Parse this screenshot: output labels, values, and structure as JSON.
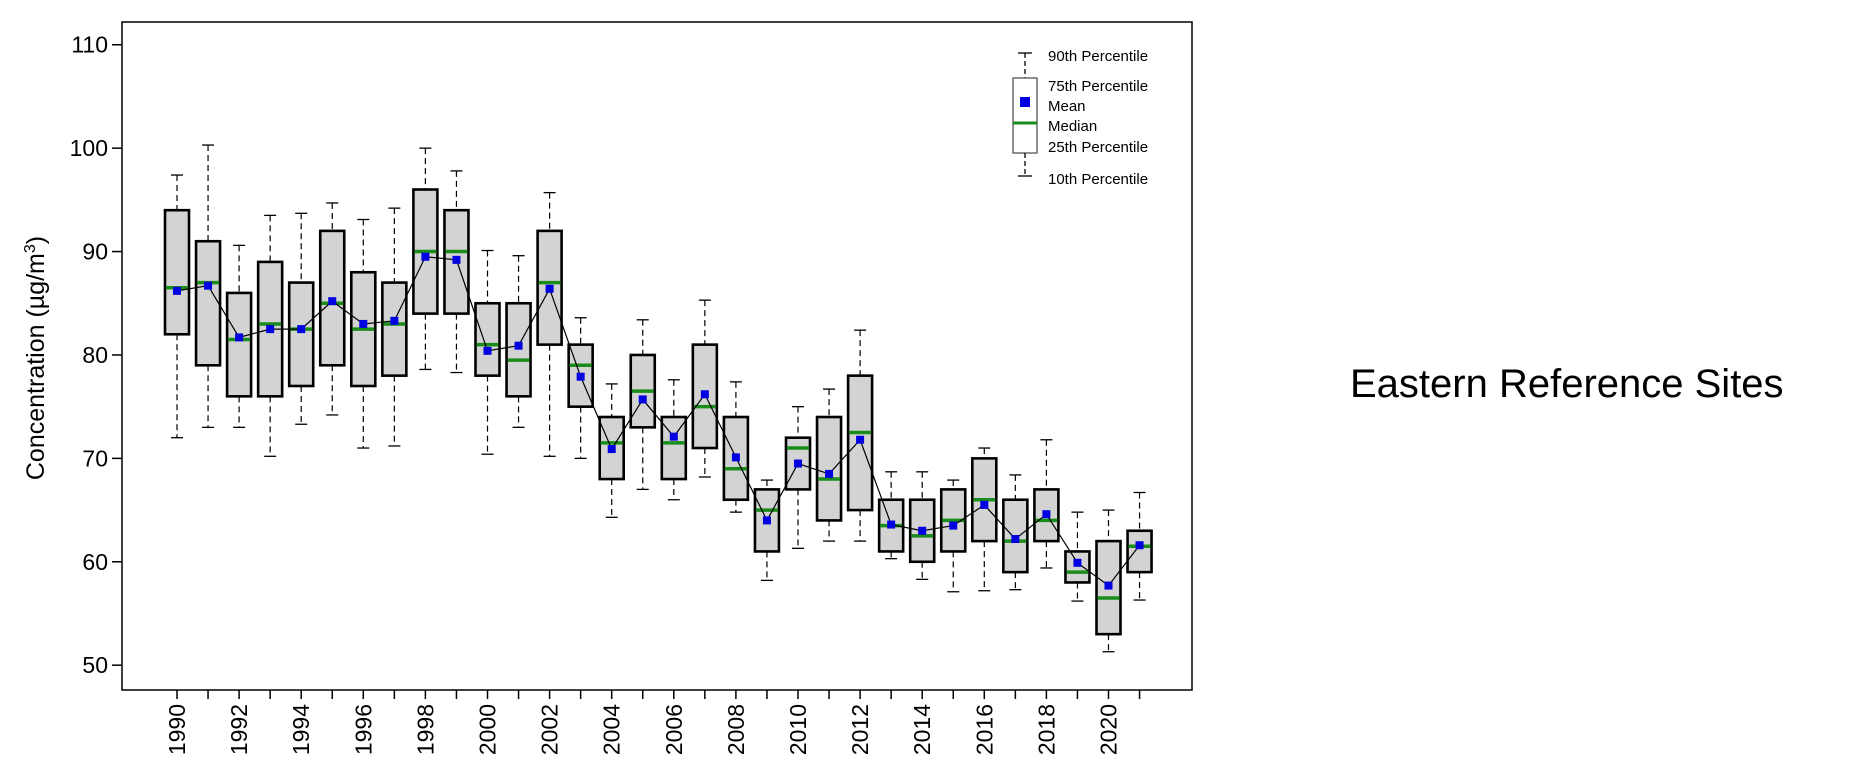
{
  "chart_data": {
    "type": "box",
    "title": "",
    "ylabel": "Concentration (µg/m",
    "ylabel_sup": "3",
    "ylabel_tail": ")",
    "xlabel": "",
    "ylim": [
      47.6,
      112.2
    ],
    "yticks": [
      50,
      60,
      70,
      80,
      90,
      100,
      110
    ],
    "site_label": "Eastern Reference Sites",
    "colors": {
      "box_fill": "#d3d3d3",
      "median": "#1a8c1a",
      "mean": "#0000e0",
      "frame": "#000000"
    },
    "legend": {
      "position": "top-right",
      "p90": "90th Percentile",
      "p75": "75th Percentile",
      "mean": "Mean",
      "median": "Median",
      "p25": "25th Percentile",
      "p10": "10th Percentile"
    },
    "years": [
      1990,
      1991,
      1992,
      1993,
      1994,
      1995,
      1996,
      1997,
      1998,
      1999,
      2000,
      2001,
      2002,
      2003,
      2004,
      2005,
      2006,
      2007,
      2008,
      2009,
      2010,
      2011,
      2012,
      2013,
      2014,
      2015,
      2016,
      2017,
      2018,
      2019,
      2020,
      2021
    ],
    "labeled_years": [
      "1990",
      "1992",
      "1994",
      "1996",
      "1998",
      "2000",
      "2002",
      "2004",
      "2006",
      "2008",
      "2010",
      "2012",
      "2014",
      "2016",
      "2018",
      "2020"
    ],
    "p10": [
      72.0,
      73.0,
      73.0,
      70.2,
      73.3,
      74.2,
      71.0,
      71.2,
      78.6,
      78.3,
      70.4,
      73.0,
      70.2,
      70.0,
      64.3,
      67.0,
      66.0,
      68.2,
      64.8,
      58.2,
      61.3,
      62.0,
      62.0,
      60.3,
      58.3,
      57.1,
      57.2,
      57.3,
      59.4,
      56.2,
      51.3,
      56.3
    ],
    "p25": [
      82.0,
      79.0,
      76.0,
      76.0,
      77.0,
      79.0,
      77.0,
      78.0,
      84.0,
      84.0,
      78.0,
      76.0,
      81.0,
      75.0,
      68.0,
      73.0,
      68.0,
      71.0,
      66.0,
      61.0,
      67.0,
      64.0,
      65.0,
      61.0,
      60.0,
      61.0,
      62.0,
      59.0,
      62.0,
      58.0,
      53.0,
      59.0
    ],
    "median": [
      86.5,
      87.0,
      81.5,
      83.0,
      82.5,
      85.0,
      82.5,
      83.0,
      90.0,
      90.0,
      81.0,
      79.5,
      87.0,
      79.0,
      71.5,
      76.5,
      71.5,
      75.0,
      69.0,
      65.0,
      71.0,
      68.0,
      72.5,
      63.5,
      62.5,
      64.0,
      66.0,
      62.0,
      64.0,
      59.0,
      56.5,
      61.5
    ],
    "p75": [
      94.0,
      91.0,
      86.0,
      89.0,
      87.0,
      92.0,
      88.0,
      87.0,
      96.0,
      94.0,
      85.0,
      85.0,
      92.0,
      81.0,
      74.0,
      80.0,
      74.0,
      81.0,
      74.0,
      67.0,
      72.0,
      74.0,
      78.0,
      66.0,
      66.0,
      67.0,
      70.0,
      66.0,
      67.0,
      61.0,
      62.0,
      63.0
    ],
    "p90": [
      97.4,
      100.3,
      90.6,
      93.5,
      93.7,
      94.7,
      93.1,
      94.2,
      100.0,
      97.8,
      90.1,
      89.6,
      95.7,
      83.6,
      77.2,
      83.4,
      77.6,
      85.3,
      77.4,
      67.9,
      75.0,
      76.7,
      82.4,
      68.7,
      68.7,
      67.9,
      71.0,
      68.4,
      71.8,
      64.8,
      65.0,
      66.7
    ],
    "mean": [
      86.2,
      86.7,
      81.7,
      82.5,
      82.5,
      85.2,
      83.0,
      83.3,
      89.5,
      89.2,
      80.4,
      80.9,
      86.4,
      77.9,
      70.9,
      75.7,
      72.1,
      76.2,
      70.1,
      64.0,
      69.5,
      68.5,
      71.8,
      63.6,
      63.0,
      63.5,
      65.5,
      62.2,
      64.6,
      59.9,
      57.7,
      61.6
    ]
  }
}
